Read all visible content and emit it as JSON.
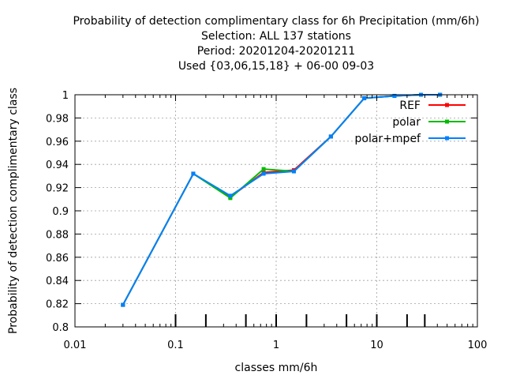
{
  "chart_data": {
    "type": "line",
    "title": [
      "Probability of detection complimentary class  for 6h Precipitation (mm/6h)",
      "Selection: ALL    137 stations",
      "Period: 20201204-20201211",
      "Used {03,06,15,18} + 06-00 09-03"
    ],
    "xlabel": "classes mm/6h",
    "ylabel": "Probability of detection complimentary class",
    "x_scale": "log",
    "xlim": [
      0.01,
      100
    ],
    "ylim": [
      0.8,
      1.0
    ],
    "x_ticks": [
      0.01,
      0.1,
      1,
      10,
      100
    ],
    "x_tick_labels": [
      "0.01",
      "0.1",
      "1",
      "10",
      "100"
    ],
    "y_ticks": [
      0.8,
      0.82,
      0.84,
      0.86,
      0.88,
      0.9,
      0.92,
      0.94,
      0.96,
      0.98,
      1.0
    ],
    "y_tick_labels": [
      "0.8",
      "0.82",
      "0.84",
      "0.86",
      "0.88",
      "0.9",
      "0.92",
      "0.94",
      "0.96",
      "0.98",
      "1"
    ],
    "class_marks": [
      0.1,
      0.2,
      0.5,
      1,
      2,
      5,
      10,
      20,
      30
    ],
    "grid": true,
    "legend_position": "top-right",
    "series": [
      {
        "name": "REF",
        "color": "#ff0000",
        "x": [
          0.03,
          0.15,
          0.35,
          0.75,
          1.5,
          3.5,
          7.5,
          15,
          27.5,
          42.5
        ],
        "y": [
          0.819,
          0.932,
          0.912,
          0.933,
          0.935,
          0.964,
          0.997,
          0.999,
          1.0,
          1.0
        ]
      },
      {
        "name": "polar",
        "color": "#00bb00",
        "x": [
          0.03,
          0.15,
          0.35,
          0.75,
          1.5,
          3.5,
          7.5,
          15,
          27.5,
          42.5
        ],
        "y": [
          0.819,
          0.932,
          0.911,
          0.936,
          0.934,
          0.964,
          0.997,
          0.999,
          1.0,
          1.0
        ]
      },
      {
        "name": "polar+mpef",
        "color": "#0080ff",
        "x": [
          0.03,
          0.15,
          0.35,
          0.75,
          1.5,
          3.5,
          7.5,
          15,
          27.5,
          42.5
        ],
        "y": [
          0.819,
          0.932,
          0.913,
          0.932,
          0.934,
          0.964,
          0.997,
          0.999,
          1.0,
          1.0
        ]
      }
    ]
  }
}
